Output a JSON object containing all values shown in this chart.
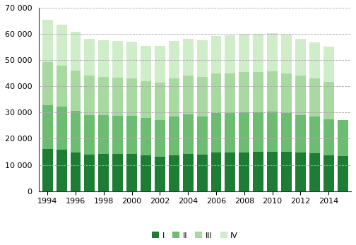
{
  "years": [
    1994,
    1995,
    1996,
    1997,
    1998,
    1999,
    2000,
    2001,
    2002,
    2003,
    2004,
    2005,
    2006,
    2007,
    2008,
    2009,
    2010,
    2011,
    2012,
    2013,
    2014,
    2015
  ],
  "Q1": [
    16100,
    15900,
    14800,
    13900,
    14200,
    14100,
    14100,
    13700,
    13200,
    13700,
    14300,
    13900,
    14700,
    14600,
    14800,
    15000,
    15000,
    14900,
    14600,
    14400,
    13700,
    13300
  ],
  "Q2": [
    16700,
    16400,
    15900,
    15100,
    14700,
    14700,
    14600,
    14300,
    14000,
    14700,
    15000,
    14600,
    15000,
    15100,
    15300,
    15200,
    15400,
    15000,
    14400,
    14200,
    13800,
    13700
  ],
  "Q3": [
    16400,
    15700,
    15200,
    15100,
    14600,
    14600,
    14400,
    14000,
    14200,
    14700,
    14700,
    15000,
    15100,
    15100,
    15400,
    15300,
    15200,
    15100,
    15000,
    14500,
    14100,
    0
  ],
  "Q4": [
    16200,
    15500,
    14800,
    14000,
    14000,
    13900,
    13900,
    13500,
    13900,
    14200,
    14100,
    14100,
    14400,
    14600,
    14600,
    14600,
    14600,
    14700,
    14100,
    13800,
    13600,
    0
  ],
  "colors": [
    "#1e7d34",
    "#6cbd72",
    "#a8d9a0",
    "#ceedc8"
  ],
  "ylim": [
    0,
    70000
  ],
  "yticks": [
    0,
    10000,
    20000,
    30000,
    40000,
    50000,
    60000,
    70000
  ],
  "ytick_labels": [
    "0",
    "10 000",
    "20 000",
    "30 000",
    "40 000",
    "50 000",
    "60 000",
    "70 000"
  ],
  "xtick_labels": [
    "1994",
    "1996",
    "1998",
    "2000",
    "2002",
    "2004",
    "2006",
    "2008",
    "2010",
    "2012",
    "2014"
  ],
  "xtick_positions": [
    1994,
    1996,
    1998,
    2000,
    2002,
    2004,
    2006,
    2008,
    2010,
    2012,
    2014
  ],
  "legend_labels": [
    "I",
    "II",
    "III",
    "IV"
  ],
  "bar_width": 0.75,
  "bg_color": "#ffffff",
  "grid_color": "#aaaaaa",
  "spine_color": "#333333"
}
